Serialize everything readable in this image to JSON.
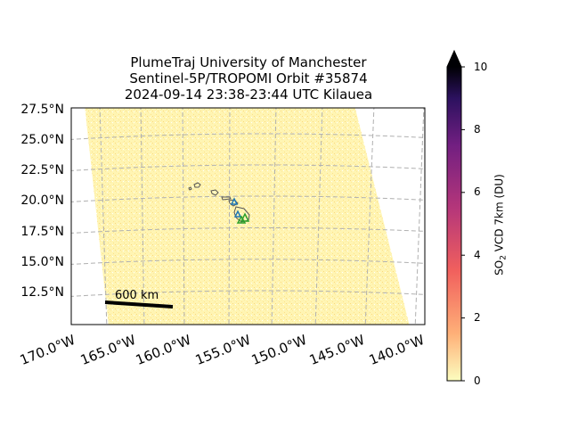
{
  "title": {
    "line1": "PlumeTraj    University of Manchester",
    "line2": "Sentinel-5P/TROPOMI Orbit #35874",
    "line3": "2024-09-14   23:38-23:44 UTC   Kilauea"
  },
  "map": {
    "lat_labels": [
      "27.5°N",
      "25.0°N",
      "22.5°N",
      "20.0°N",
      "17.5°N",
      "15.0°N",
      "12.5°N"
    ],
    "lon_labels": [
      "170.0°W",
      "165.0°W",
      "160.0°W",
      "155.0°W",
      "150.0°W",
      "145.0°W",
      "140.0°W"
    ],
    "scale_bar_label": "600 km",
    "swath_color": "#fff5b3",
    "coastline_color": "#555555",
    "volcano_markers": [
      {
        "name": "Kilauea",
        "color": "#2ca02c"
      },
      {
        "name": "Mauna Loa",
        "color": "#1f77b4"
      },
      {
        "name": "Haleakala",
        "color": "#1f77b4"
      }
    ]
  },
  "colorbar": {
    "label_main": "SO",
    "label_sub": "2",
    "label_rest": " VCD 7km (DU)",
    "ticks": [
      "0",
      "2",
      "4",
      "6",
      "8",
      "10"
    ],
    "min": 0,
    "max": 10,
    "extend": "max",
    "colormap": [
      "#fcfdbf",
      "#feb078",
      "#f1605d",
      "#b5367a",
      "#721f81",
      "#2c115f",
      "#000004"
    ]
  }
}
